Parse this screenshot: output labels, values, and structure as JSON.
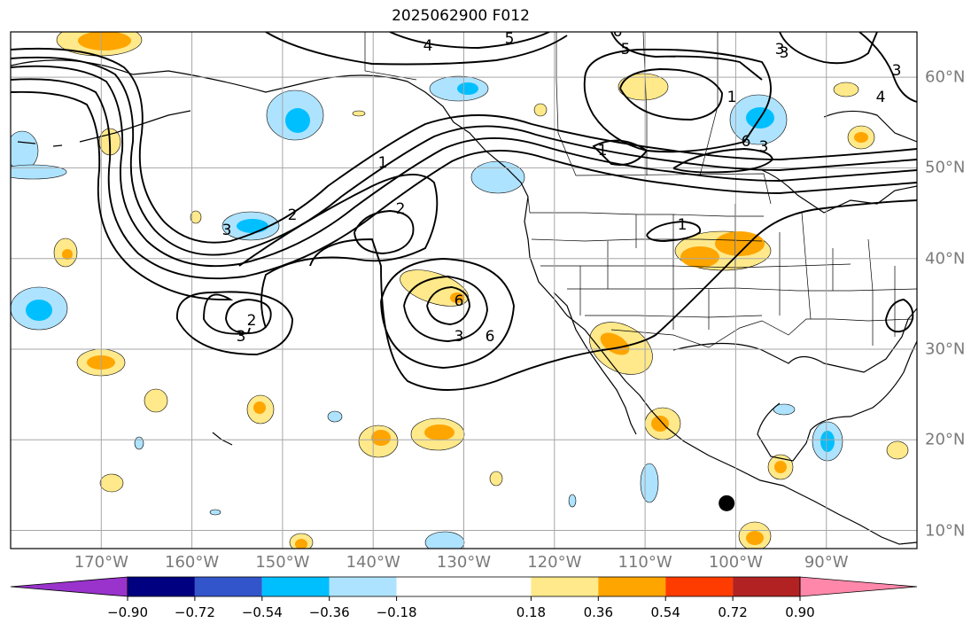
{
  "title": "2025062900 F012",
  "colors": {
    "ocean": "#ffffff",
    "grid": "#a6a6a6",
    "coast": "#000000",
    "contour": "#000000",
    "marker": "#000000",
    "tick_label": "#7a7a7a"
  },
  "map": {
    "projection": "equirectangular",
    "lon_range": [
      -180,
      -80
    ],
    "lat_range": [
      8,
      65
    ],
    "field": "shaded anomaly with black contour lines",
    "contour_labels": [
      "4",
      "5",
      "5",
      "6",
      "3",
      "1",
      "2",
      "2",
      "3",
      "2",
      "3",
      "3",
      "6",
      "6",
      "1",
      "3",
      "1",
      "1",
      "6",
      "3",
      "3",
      "4"
    ],
    "marker": {
      "lon": -101,
      "lat": 13
    },
    "lon_ticks": [
      {
        "value": -170,
        "label": "170°W"
      },
      {
        "value": -160,
        "label": "160°W"
      },
      {
        "value": -150,
        "label": "150°W"
      },
      {
        "value": -140,
        "label": "140°W"
      },
      {
        "value": -130,
        "label": "130°W"
      },
      {
        "value": -120,
        "label": "120°W"
      },
      {
        "value": -110,
        "label": "110°W"
      },
      {
        "value": -100,
        "label": "100°W"
      },
      {
        "value": -90,
        "label": "90°W"
      }
    ],
    "lat_ticks": [
      {
        "value": 60,
        "label": "60°N"
      },
      {
        "value": 50,
        "label": "50°N"
      },
      {
        "value": 40,
        "label": "40°N"
      },
      {
        "value": 30,
        "label": "30°N"
      },
      {
        "value": 20,
        "label": "20°N"
      },
      {
        "value": 10,
        "label": "10°N"
      }
    ]
  },
  "colorbar": {
    "extend": "both",
    "bounds": [
      -1.08,
      -0.9,
      -0.72,
      -0.54,
      -0.36,
      -0.18,
      0.18,
      0.36,
      0.54,
      0.72,
      0.9,
      1.08
    ],
    "colors": [
      "#9933cc",
      "#000080",
      "#3355cc",
      "#00bfff",
      "#aee3ff",
      "#ffffff",
      "#ffe98a",
      "#ffa500",
      "#ff3c00",
      "#b22222",
      "#ff88aa"
    ],
    "under_color": "#9933cc",
    "over_color": "#ff88aa",
    "tick_labels": [
      "−0.90",
      "−0.72",
      "−0.54",
      "−0.36",
      "−0.18",
      "0.18",
      "0.36",
      "0.54",
      "0.72",
      "0.90"
    ]
  }
}
